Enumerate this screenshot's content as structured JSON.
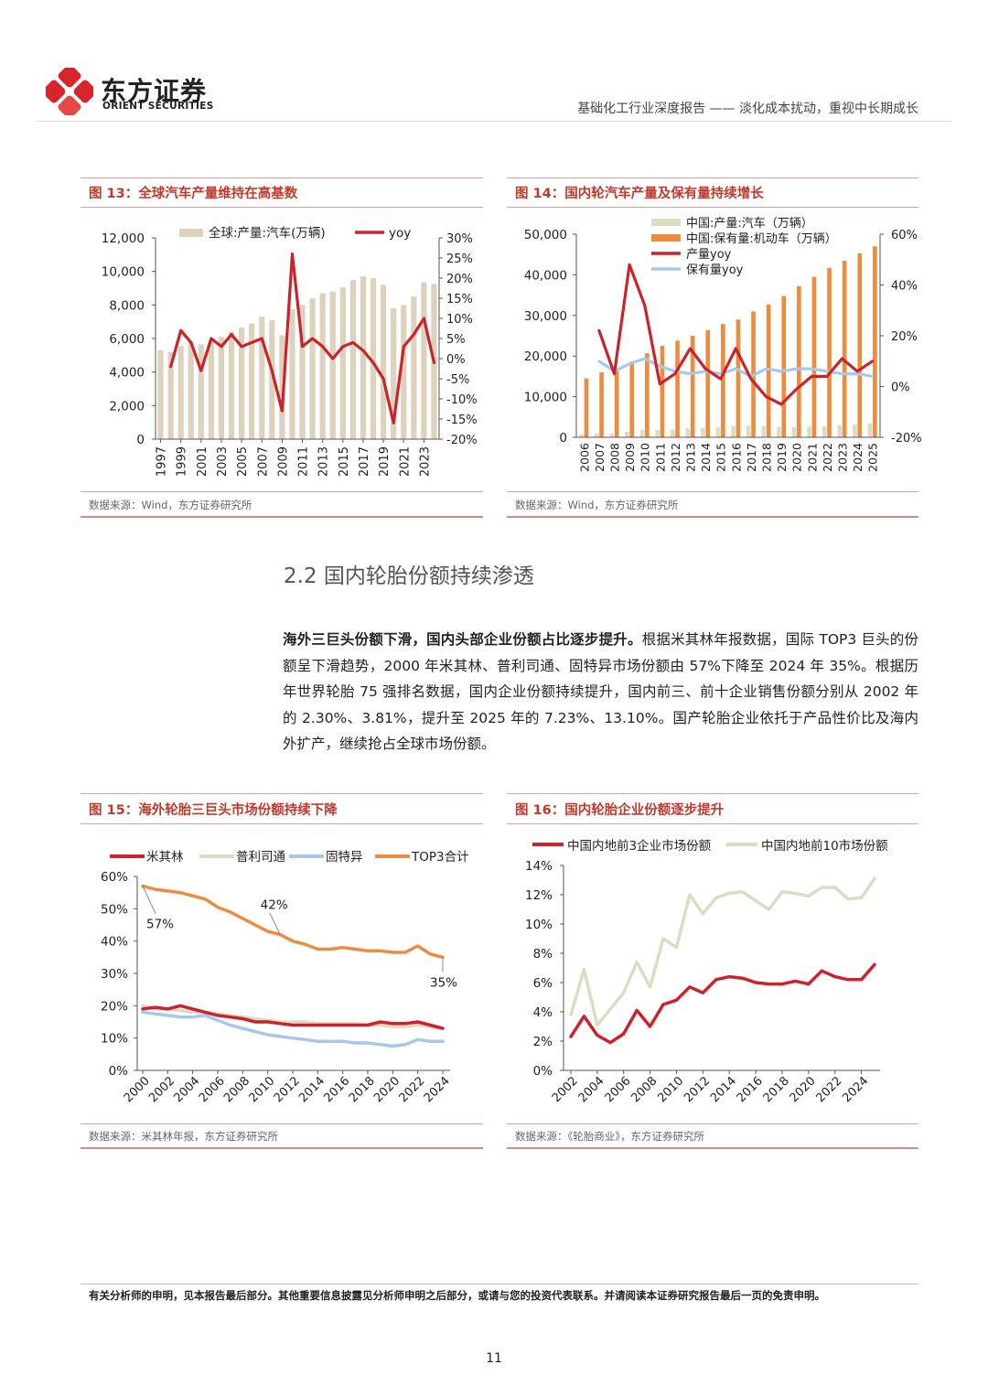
{
  "header": {
    "logo_cn": "东方证券",
    "logo_en": "ORIENT SECURITIES",
    "report_title": "基础化工行业深度报告 —— 淡化成本扰动，重视中长期成长"
  },
  "section": {
    "title": "2.2 国内轮胎份额持续渗透",
    "para_bold": "海外三巨头份额下滑，国内头部企业份额占比逐步提升。",
    "para_rest": "根据米其林年报数据，国际 TOP3 巨头的份额呈下滑趋势，2000 年米其林、普利司通、固特异市场份额由 57%下降至 2024 年 35%。根据历年世界轮胎 75 强排名数据，国内企业份额持续提升，国内前三、前十企业销售份额分别从 2002 年的 2.30%、3.81%，提升至 2025 年的 7.23%、13.10%。国产轮胎企业依托于产品性价比及海内外扩产，继续抢占全球市场份额。"
  },
  "footer": {
    "disclaimer": "有关分析师的申明，见本报告最后部分。其他重要信息披露见分析师申明之后部分，或请与您的投资代表联系。并请阅读本证券研究报告最后一页的免责申明。",
    "page_number": "11"
  },
  "colors": {
    "red": "#cc2229",
    "beige": "#dcd2be",
    "orange": "#ed8c3c",
    "blue": "#a6c8ea",
    "lightgreen": "#dcdcc2"
  },
  "figures": [
    {
      "title": "图 13：全球汽车产量维持在高基数",
      "source": "数据来源：Wind，东方证券研究所"
    },
    {
      "title": "图 14：国内轮汽车产量及保有量持续增长",
      "source": "数据来源：Wind，东方证券研究所"
    },
    {
      "title": "图 15：海外轮胎三巨头市场份额持续下降",
      "source": "数据来源：米其林年报，东方证券研究所"
    },
    {
      "title": "图 16：国内轮胎企业份额逐步提升",
      "source": "数据来源：《轮胎商业》，东方证券研究所"
    }
  ],
  "chart_data": [
    {
      "type": "bar",
      "x": [
        1997,
        1998,
        1999,
        2000,
        2001,
        2002,
        2003,
        2004,
        2005,
        2006,
        2007,
        2008,
        2009,
        2010,
        2011,
        2012,
        2013,
        2014,
        2015,
        2016,
        2017,
        2018,
        2019,
        2020,
        2021,
        2022,
        2023,
        2024
      ],
      "x_tick_labels": [
        "1997",
        "1999",
        "2001",
        "2003",
        "2005",
        "2007",
        "2009",
        "2011",
        "2013",
        "2015",
        "2017",
        "2019",
        "2021",
        "2023"
      ],
      "series": [
        {
          "name": "全球:产量:汽车(万辆)",
          "type": "bar",
          "axis": "left",
          "values": [
            5300,
            5200,
            5550,
            5800,
            5650,
            5900,
            6100,
            6400,
            6650,
            6900,
            7300,
            7100,
            6200,
            7750,
            8000,
            8400,
            8700,
            8800,
            9050,
            9500,
            9700,
            9600,
            9200,
            7800,
            8000,
            8500,
            9350,
            9250
          ]
        },
        {
          "name": "yoy",
          "type": "line",
          "axis": "right",
          "values": [
            null,
            -2,
            7,
            4,
            -3,
            5,
            3,
            6,
            3,
            4,
            5,
            -3,
            -13,
            26,
            3,
            5,
            3,
            0,
            3,
            4,
            2,
            -1,
            -5,
            -16,
            3,
            6,
            10,
            -1
          ]
        }
      ],
      "y_left": {
        "min": 0,
        "max": 12000,
        "ticks": [
          "0",
          "2,000",
          "4,000",
          "6,000",
          "8,000",
          "10,000",
          "12,000"
        ]
      },
      "y_right": {
        "min": -20,
        "max": 30,
        "ticks": [
          "-20%",
          "-15%",
          "-10%",
          "-5%",
          "0%",
          "5%",
          "10%",
          "15%",
          "20%",
          "25%",
          "30%"
        ]
      }
    },
    {
      "type": "bar",
      "x": [
        2006,
        2007,
        2008,
        2009,
        2010,
        2011,
        2012,
        2013,
        2014,
        2015,
        2016,
        2017,
        2018,
        2019,
        2020,
        2021,
        2022,
        2023,
        2024,
        2025
      ],
      "x_tick_labels": [
        "2006",
        "2007",
        "2008",
        "2009",
        "2010",
        "2011",
        "2012",
        "2013",
        "2014",
        "2015",
        "2016",
        "2017",
        "2018",
        "2019",
        "2020",
        "2021",
        "2022",
        "2023",
        "2024",
        "2025"
      ],
      "series": [
        {
          "name": "中国:产量:汽车（万辆）",
          "type": "bar",
          "axis": "left",
          "values": [
            730,
            890,
            930,
            1380,
            1830,
            1840,
            1930,
            2210,
            2370,
            2450,
            2810,
            2900,
            2780,
            2570,
            2520,
            2610,
            2700,
            3020,
            3130,
            3450
          ]
        },
        {
          "name": "中国:保有量:机动车（万辆）",
          "type": "bar",
          "axis": "left",
          "values": [
            14500,
            16000,
            17000,
            18600,
            20700,
            22500,
            23800,
            25000,
            26400,
            27900,
            29000,
            31000,
            32700,
            34800,
            37200,
            39500,
            41700,
            43500,
            45300,
            47000
          ]
        },
        {
          "name": "产量yoy",
          "type": "line",
          "axis": "right",
          "values": [
            null,
            22,
            5,
            48,
            32,
            1,
            5,
            15,
            7,
            3,
            15,
            3,
            -4,
            -7,
            -1,
            4,
            4,
            11,
            6,
            10
          ]
        },
        {
          "name": "保有量yoy",
          "type": "line",
          "axis": "right",
          "values": [
            null,
            10,
            6,
            9,
            11,
            8,
            6,
            5,
            6,
            5,
            7,
            4,
            7,
            6,
            7,
            7,
            6,
            5,
            5,
            4
          ]
        }
      ],
      "y_left": {
        "min": 0,
        "max": 50000,
        "ticks": [
          "0",
          "10,000",
          "20,000",
          "30,000",
          "40,000",
          "50,000"
        ]
      },
      "y_right": {
        "min": -20,
        "max": 60,
        "ticks": [
          "-20%",
          "0%",
          "20%",
          "40%",
          "60%"
        ]
      }
    },
    {
      "type": "line",
      "x": [
        2000,
        2001,
        2002,
        2003,
        2004,
        2005,
        2006,
        2007,
        2008,
        2009,
        2010,
        2011,
        2012,
        2013,
        2014,
        2015,
        2016,
        2017,
        2018,
        2019,
        2020,
        2021,
        2022,
        2023,
        2024
      ],
      "x_tick_labels": [
        "2000",
        "2002",
        "2004",
        "2006",
        "2008",
        "2010",
        "2012",
        "2014",
        "2016",
        "2018",
        "2020",
        "2022",
        "2024"
      ],
      "series": [
        {
          "name": "米其林",
          "values": [
            19,
            19.5,
            19,
            20,
            19,
            18,
            17,
            16.5,
            16,
            15,
            15,
            14.5,
            14,
            14,
            14,
            14,
            14,
            14,
            14,
            15,
            14.5,
            14.5,
            15,
            14,
            13
          ]
        },
        {
          "name": "普利司通",
          "values": [
            20,
            19,
            19,
            18.5,
            18,
            18,
            17.5,
            17,
            16.5,
            16,
            15.5,
            15,
            15,
            15,
            14.5,
            14.5,
            14.5,
            14.5,
            14,
            14,
            13.5,
            13.5,
            14,
            13.5,
            13
          ]
        },
        {
          "name": "固特异",
          "values": [
            18,
            17.5,
            17,
            16.5,
            16.5,
            17,
            15.5,
            14,
            13,
            12,
            11,
            10.5,
            10,
            9.5,
            9,
            9,
            9,
            8.5,
            8.5,
            8,
            7.5,
            8,
            9.5,
            9,
            9
          ]
        },
        {
          "name": "TOP3合计",
          "values": [
            57,
            56,
            55.5,
            55,
            54,
            53,
            50.5,
            49,
            47,
            45,
            43,
            42,
            40,
            39,
            37.5,
            37.5,
            38,
            37.5,
            37,
            37,
            36.5,
            36.5,
            38.5,
            36,
            35
          ]
        }
      ],
      "annotations": [
        "57%",
        "42%",
        "35%"
      ],
      "y": {
        "min": 0,
        "max": 60,
        "ticks": [
          "0%",
          "10%",
          "20%",
          "30%",
          "40%",
          "50%",
          "60%"
        ]
      }
    },
    {
      "type": "line",
      "x": [
        2002,
        2003,
        2004,
        2005,
        2006,
        2007,
        2008,
        2009,
        2010,
        2011,
        2012,
        2013,
        2014,
        2015,
        2016,
        2017,
        2018,
        2019,
        2020,
        2021,
        2022,
        2023,
        2024,
        2025
      ],
      "x_tick_labels": [
        "2002",
        "2004",
        "2006",
        "2008",
        "2010",
        "2012",
        "2014",
        "2016",
        "2018",
        "2020",
        "2022",
        "2024"
      ],
      "series": [
        {
          "name": "中国内地前3企业市场份额",
          "values": [
            2.3,
            3.7,
            2.4,
            1.9,
            2.5,
            4.1,
            3.0,
            4.5,
            4.8,
            5.7,
            5.3,
            6.2,
            6.4,
            6.3,
            6.0,
            5.9,
            5.9,
            6.1,
            5.9,
            6.8,
            6.4,
            6.2,
            6.2,
            7.23
          ]
        },
        {
          "name": "中国内地前10市场份额",
          "values": [
            3.81,
            6.9,
            3.1,
            4.2,
            5.3,
            7.4,
            5.7,
            9.0,
            8.4,
            12.0,
            10.7,
            11.8,
            12.1,
            12.2,
            11.6,
            11.0,
            12.2,
            12.1,
            11.9,
            12.5,
            12.5,
            11.7,
            11.8,
            13.1
          ]
        }
      ],
      "y": {
        "min": 0,
        "max": 14,
        "ticks": [
          "0%",
          "2%",
          "4%",
          "6%",
          "8%",
          "10%",
          "12%",
          "14%"
        ]
      }
    }
  ]
}
